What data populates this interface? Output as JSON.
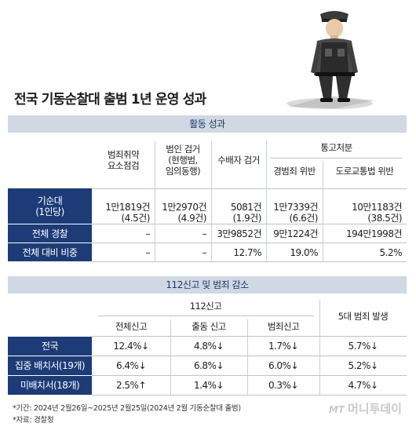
{
  "title": "전국 기동순찰대 출범 1년 운영 성과",
  "section1": {
    "heading": "활동 성과",
    "headers": {
      "c1": [
        "범죄취약",
        "요소점검"
      ],
      "c2": [
        "범인 검거",
        "(현행범,",
        "임의동행)"
      ],
      "c3": "수배자 검거",
      "group": "통고처분",
      "c4": "경범죄 위반",
      "c5": "도로교통법 위반"
    },
    "rows": [
      {
        "label": [
          "기순대",
          "(1인당)"
        ],
        "c1": [
          "1만1819건",
          "(4.5건)"
        ],
        "c2": [
          "1만2970건",
          "(4.9건)"
        ],
        "c3": [
          "5081건",
          "(1.9건)"
        ],
        "c4": [
          "1만7339건",
          "(6.6건)"
        ],
        "c5": [
          "10만1183건",
          "(38.5건)"
        ]
      },
      {
        "label": [
          "전체 경찰"
        ],
        "c1": [
          "–"
        ],
        "c2": [
          "–"
        ],
        "c3": [
          "3만9852건"
        ],
        "c4": [
          "9만1224건"
        ],
        "c5": [
          "194만1998건"
        ]
      },
      {
        "label": [
          "전체 대비 비중"
        ],
        "c1": [
          "–"
        ],
        "c2": [
          "–"
        ],
        "c3": [
          "12.7%"
        ],
        "c4": [
          "19.0%"
        ],
        "c5": [
          "5.2%"
        ]
      }
    ]
  },
  "section2": {
    "heading": "112신고 및 범죄 감소",
    "headers": {
      "group": "112신고",
      "c1": "전체신고",
      "c2": "출동 신고",
      "c3": "범죄신고",
      "c4": "5대 범죄 발생"
    },
    "rows": [
      {
        "label": "전국",
        "c1": "12.4%↓",
        "c2": "4.8%↓",
        "c3": "1.7%↓",
        "c4": "5.7%↓"
      },
      {
        "label": "집중 배치서(19개)",
        "c1": "6.4%↓",
        "c2": "6.8%↓",
        "c3": "6.0%↓",
        "c4": "5.2%↓"
      },
      {
        "label": "미배치서(18개)",
        "c1": "2.5%↑",
        "c2": "1.4%↓",
        "c3": "0.3%↓",
        "c4": "4.7%↓"
      }
    ]
  },
  "footer": {
    "period": "*기간: 2024년 2월26일~2025년 2월25일(2024년 2월 기동순찰대 출범)",
    "source": "*자료: 경찰청"
  },
  "watermark": {
    "prefix": "MT",
    "text": "머니투데이"
  }
}
